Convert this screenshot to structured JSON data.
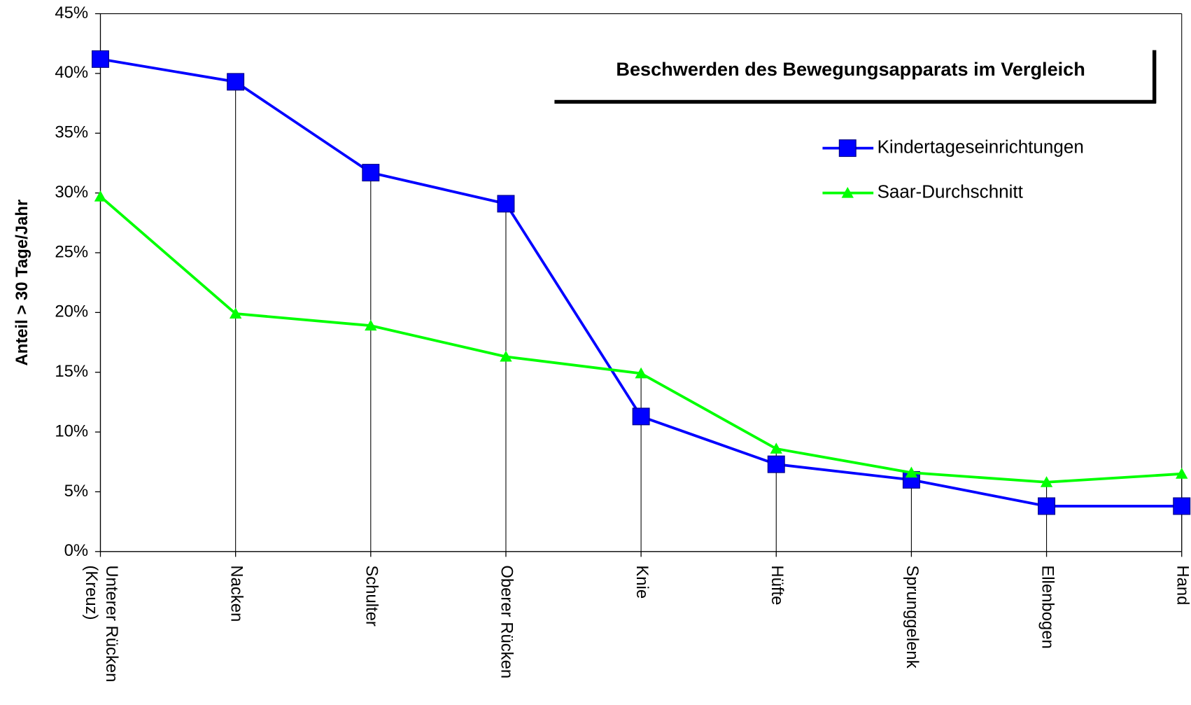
{
  "chart_data": {
    "type": "line",
    "title": "Beschwerden des Bewegungsapparats im Vergleich",
    "ylabel": "Anteil > 30 Tage/Jahr",
    "categories": [
      "Unterer Rücken (Kreuz)",
      "Nacken",
      "Schulter",
      "Oberer Rücken",
      "Knie",
      "Hüfte",
      "Sprunggelenk",
      "Ellenbogen",
      "Hand"
    ],
    "series": [
      {
        "name": "Kindertageseinrichtungen",
        "color": "#0000ff",
        "marker": "square",
        "values": [
          41.2,
          39.3,
          31.7,
          29.1,
          11.3,
          7.3,
          6.0,
          3.8,
          3.8
        ]
      },
      {
        "name": "Saar-Durchschnitt",
        "color": "#00ff00",
        "marker": "triangle",
        "values": [
          29.7,
          19.9,
          18.9,
          16.3,
          14.9,
          8.6,
          6.6,
          5.8,
          6.5
        ]
      }
    ],
    "ylim": [
      0,
      45
    ],
    "yticks": [
      {
        "value": 0,
        "label": "0%"
      },
      {
        "value": 5,
        "label": "5%"
      },
      {
        "value": 10,
        "label": "10%"
      },
      {
        "value": 15,
        "label": "15%"
      },
      {
        "value": 20,
        "label": "20%"
      },
      {
        "value": 25,
        "label": "25%"
      },
      {
        "value": 30,
        "label": "30%"
      },
      {
        "value": 35,
        "label": "35%"
      },
      {
        "value": 40,
        "label": "40%"
      },
      {
        "value": 45,
        "label": "45%"
      }
    ],
    "drop_lines": true,
    "legend": "upper right"
  }
}
